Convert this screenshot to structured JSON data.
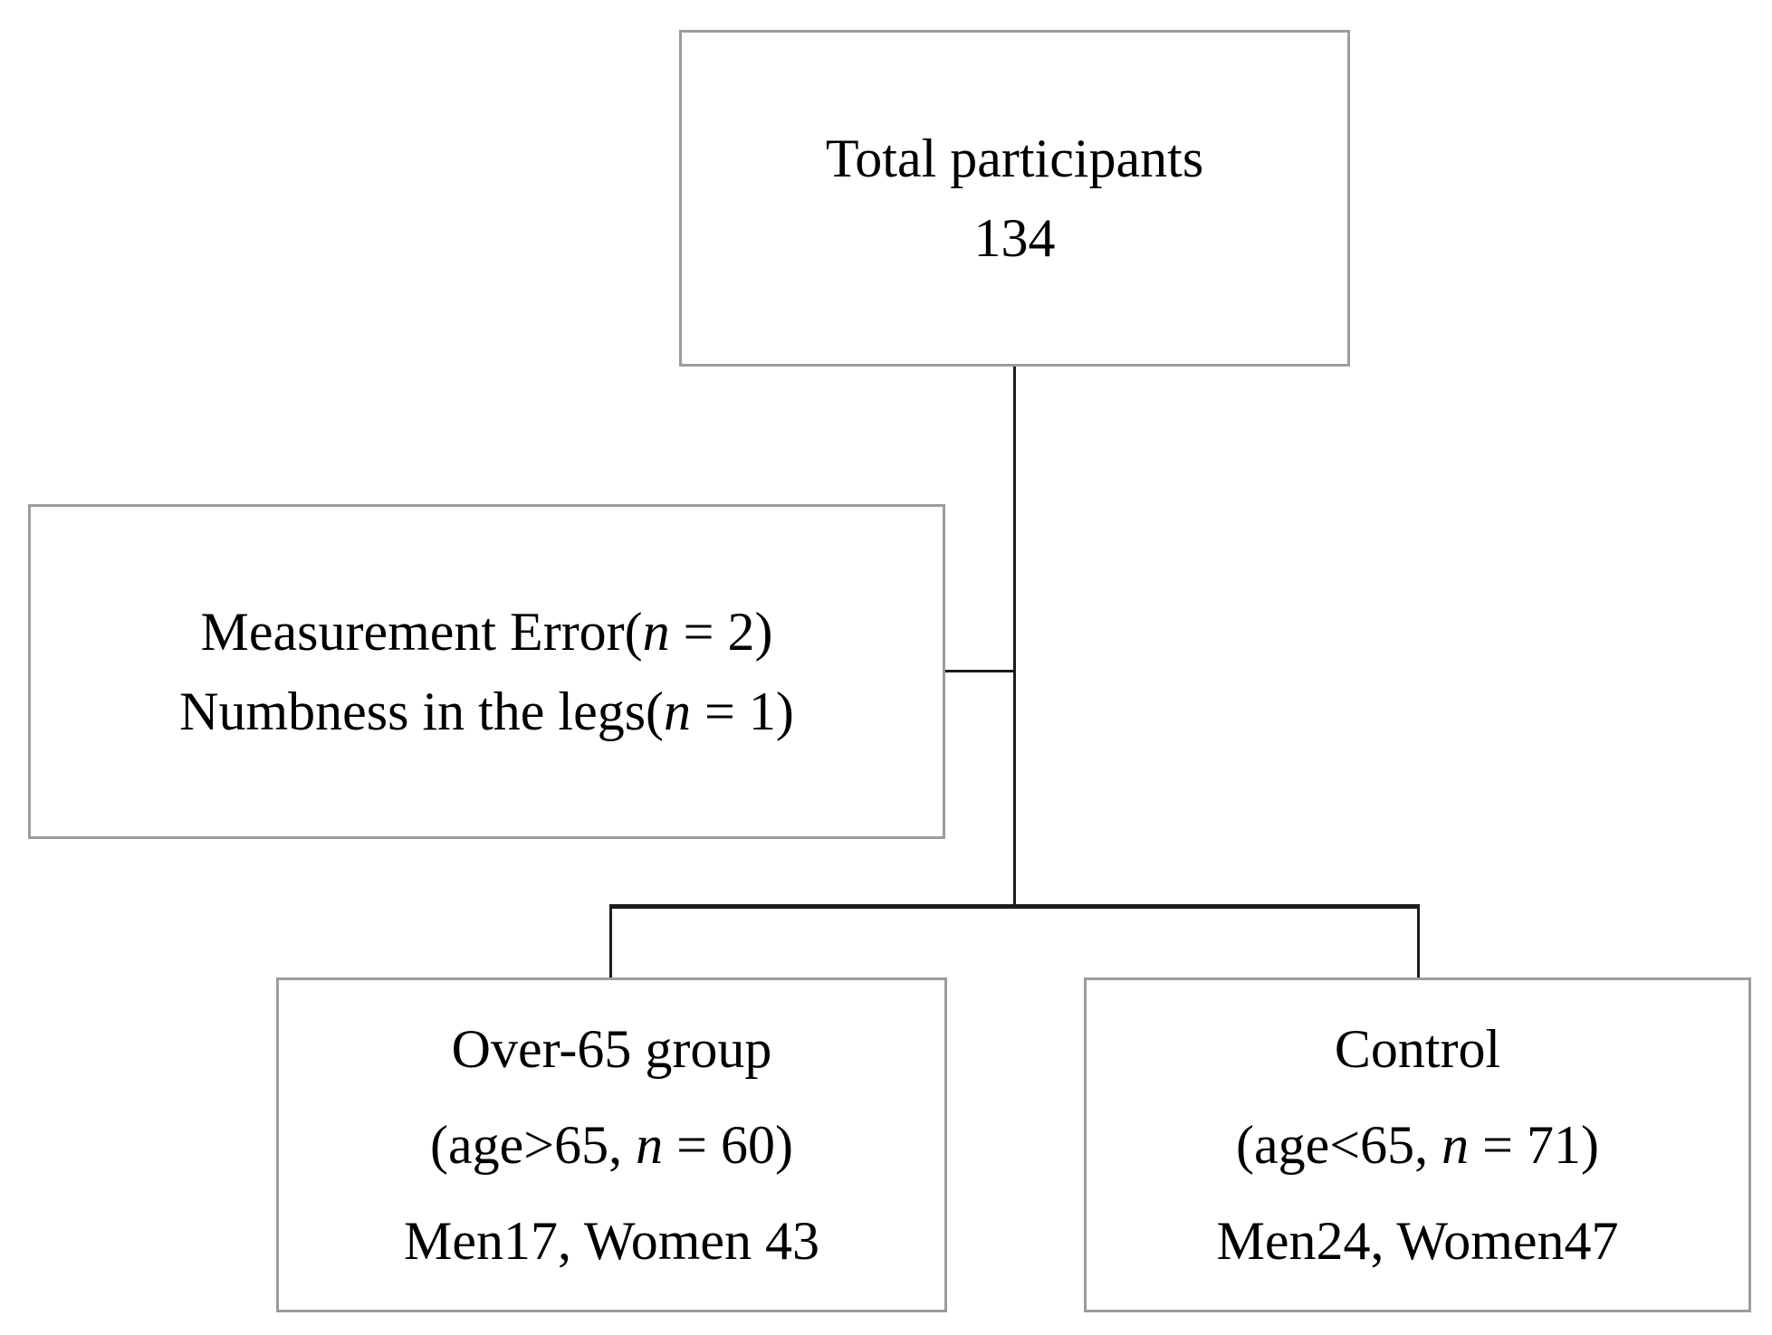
{
  "diagram": {
    "colors": {
      "background": "#ffffff",
      "box_border": "#9c9c9c",
      "connector": "#1c1c1c",
      "text": "#000000"
    },
    "boxes": {
      "total": {
        "lines": [
          {
            "pre": "Total participants",
            "italic": "",
            "post": ""
          },
          {
            "pre": "134",
            "italic": "",
            "post": ""
          }
        ]
      },
      "exclusion": {
        "lines": [
          {
            "pre": "Measurement Error(",
            "italic": "n",
            "post": " = 2)"
          },
          {
            "pre": "Numbness in the legs(",
            "italic": "n",
            "post": " = 1)"
          }
        ]
      },
      "over65": {
        "lines": [
          {
            "pre": "Over-65 group",
            "italic": "",
            "post": ""
          },
          {
            "pre": "(age>65, ",
            "italic": "n",
            "post": " = 60)"
          },
          {
            "pre": "Men17, Women 43",
            "italic": "",
            "post": ""
          }
        ]
      },
      "control": {
        "lines": [
          {
            "pre": "Control",
            "italic": "",
            "post": ""
          },
          {
            "pre": "(age<65, ",
            "italic": "n",
            "post": " = 71)"
          },
          {
            "pre": "Men24, Women47",
            "italic": "",
            "post": ""
          }
        ]
      }
    }
  }
}
